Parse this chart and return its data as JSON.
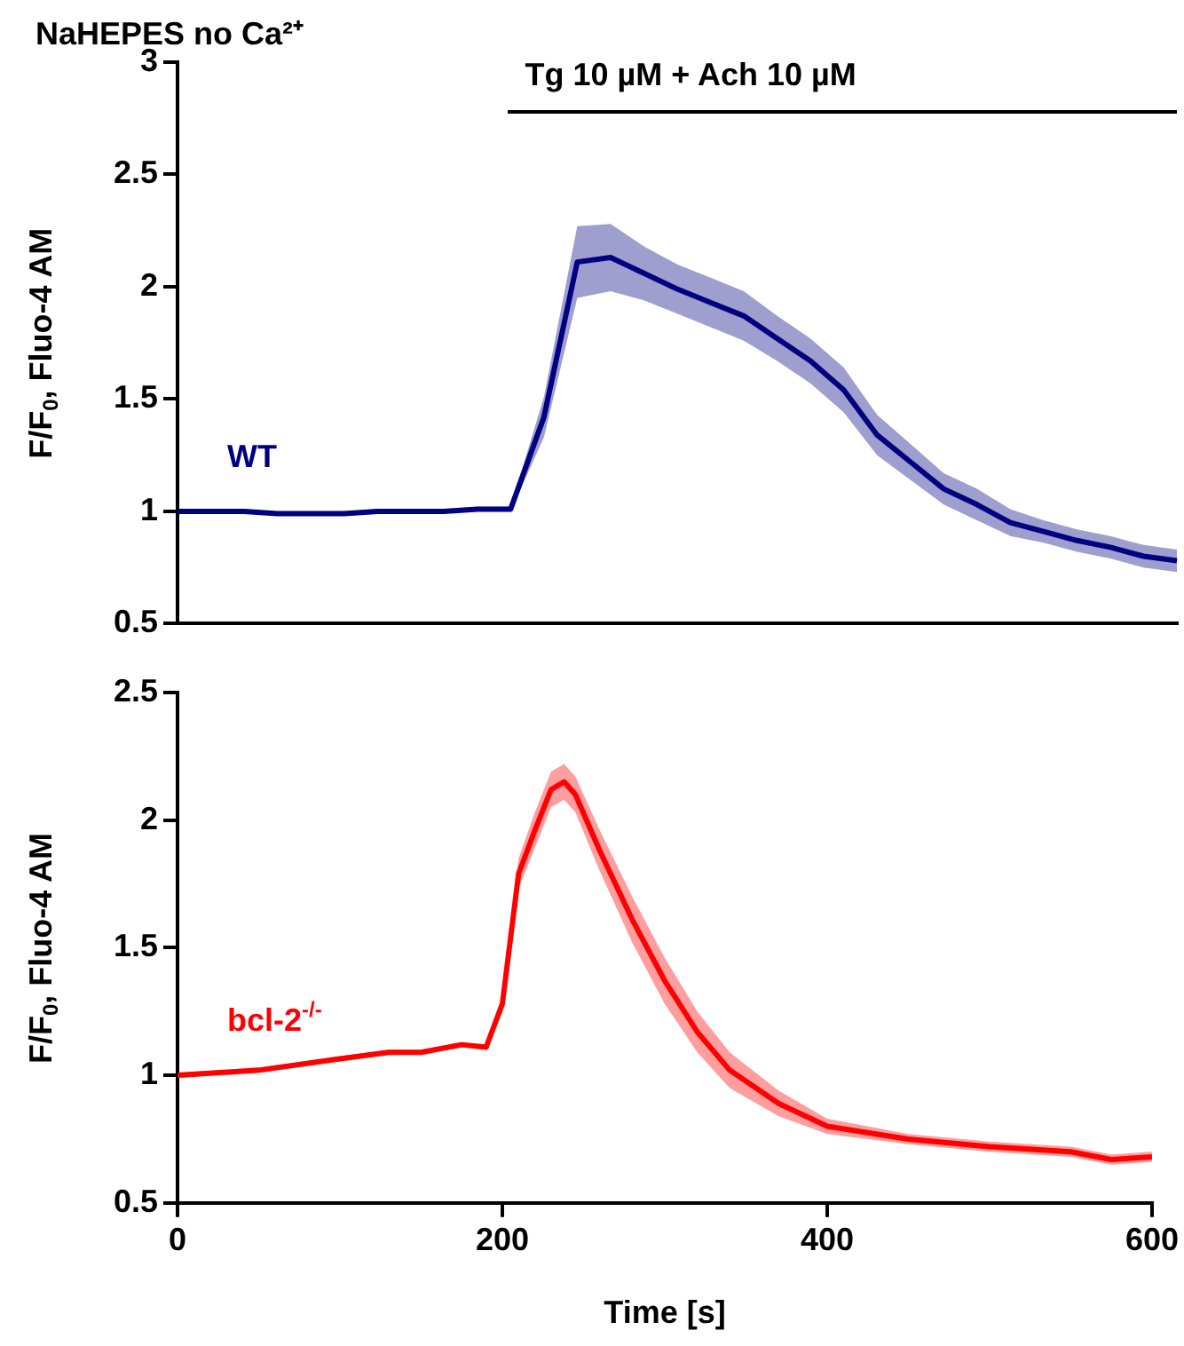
{
  "chart_data": [
    {
      "type": "line",
      "title": "NaHEPES no Ca²⁺",
      "ylabel": "F/F$_{0}$, Fluo-4 AM",
      "categories": [
        null,
        null,
        null,
        null,
        null,
        null,
        null,
        null,
        null,
        null,
        null,
        null,
        null,
        null,
        null,
        null,
        null,
        null,
        null,
        null,
        null,
        null,
        null,
        null,
        null,
        null,
        null,
        null,
        null,
        null,
        null
      ],
      "ylim": [
        0.5,
        3
      ],
      "yticks": [
        0.5,
        1,
        1.5,
        2,
        2.5,
        3
      ],
      "tick_labels": "y",
      "marker": "none",
      "line_style": "solid",
      "annotations": [
        "Tg 10 µM + Ach 10 µM"
      ],
      "series": [
        {
          "name": "WT",
          "color": "#000080",
          "values": [
            1.0,
            1.0,
            1.0,
            0.99,
            0.99,
            0.99,
            1.0,
            1.0,
            1.0,
            1.01,
            1.01,
            1.42,
            2.11,
            2.13,
            2.06,
            1.99,
            1.93,
            1.87,
            1.77,
            1.67,
            1.54,
            1.34,
            1.22,
            1.1,
            1.03,
            0.95,
            0.91,
            0.87,
            0.84,
            0.8,
            0.78
          ],
          "lower": [
            0.99,
            0.99,
            0.99,
            0.98,
            0.98,
            0.98,
            0.99,
            0.99,
            0.99,
            1.0,
            1.0,
            1.33,
            1.95,
            1.98,
            1.94,
            1.88,
            1.82,
            1.76,
            1.67,
            1.57,
            1.44,
            1.25,
            1.14,
            1.03,
            0.96,
            0.89,
            0.86,
            0.82,
            0.79,
            0.75,
            0.73
          ],
          "upper": [
            1.01,
            1.01,
            1.01,
            1.0,
            1.0,
            1.0,
            1.01,
            1.01,
            1.01,
            1.02,
            1.02,
            1.51,
            2.27,
            2.28,
            2.18,
            2.1,
            2.04,
            1.98,
            1.87,
            1.77,
            1.64,
            1.43,
            1.3,
            1.17,
            1.1,
            1.01,
            0.96,
            0.92,
            0.89,
            0.85,
            0.83
          ]
        }
      ]
    },
    {
      "type": "line",
      "xlabel": "Time [s]",
      "ylabel": "F/F$_{0}$, Fluo-4 AM",
      "xlim": [
        0,
        600
      ],
      "xticks": [
        0,
        200,
        400,
        600
      ],
      "ylim": [
        0.5,
        2.5
      ],
      "yticks": [
        0.5,
        1,
        1.5,
        2,
        2.5
      ],
      "marker": "none",
      "line_style": "solid",
      "series": [
        {
          "name": "bcl-2$^{-/-}$",
          "color": "#ff0000",
          "x": [
            0,
            50,
            100,
            130,
            150,
            175,
            190,
            200,
            210,
            220,
            230,
            238,
            245,
            260,
            280,
            300,
            320,
            340,
            370,
            400,
            450,
            500,
            550,
            575,
            600
          ],
          "values": [
            1.0,
            1.02,
            1.065,
            1.09,
            1.09,
            1.12,
            1.11,
            1.28,
            1.79,
            1.96,
            2.12,
            2.15,
            2.1,
            1.88,
            1.61,
            1.37,
            1.17,
            1.02,
            0.89,
            0.8,
            0.75,
            0.72,
            0.7,
            0.67,
            0.68
          ],
          "lower": [
            0.99,
            1.01,
            1.055,
            1.08,
            1.08,
            1.11,
            1.1,
            1.25,
            1.73,
            1.89,
            2.05,
            2.08,
            2.03,
            1.8,
            1.52,
            1.28,
            1.09,
            0.95,
            0.84,
            0.77,
            0.73,
            0.7,
            0.68,
            0.65,
            0.66
          ],
          "upper": [
            1.01,
            1.03,
            1.075,
            1.1,
            1.1,
            1.13,
            1.12,
            1.31,
            1.85,
            2.03,
            2.19,
            2.22,
            2.17,
            1.96,
            1.7,
            1.46,
            1.25,
            1.09,
            0.94,
            0.83,
            0.77,
            0.74,
            0.72,
            0.69,
            0.7
          ]
        }
      ]
    }
  ]
}
